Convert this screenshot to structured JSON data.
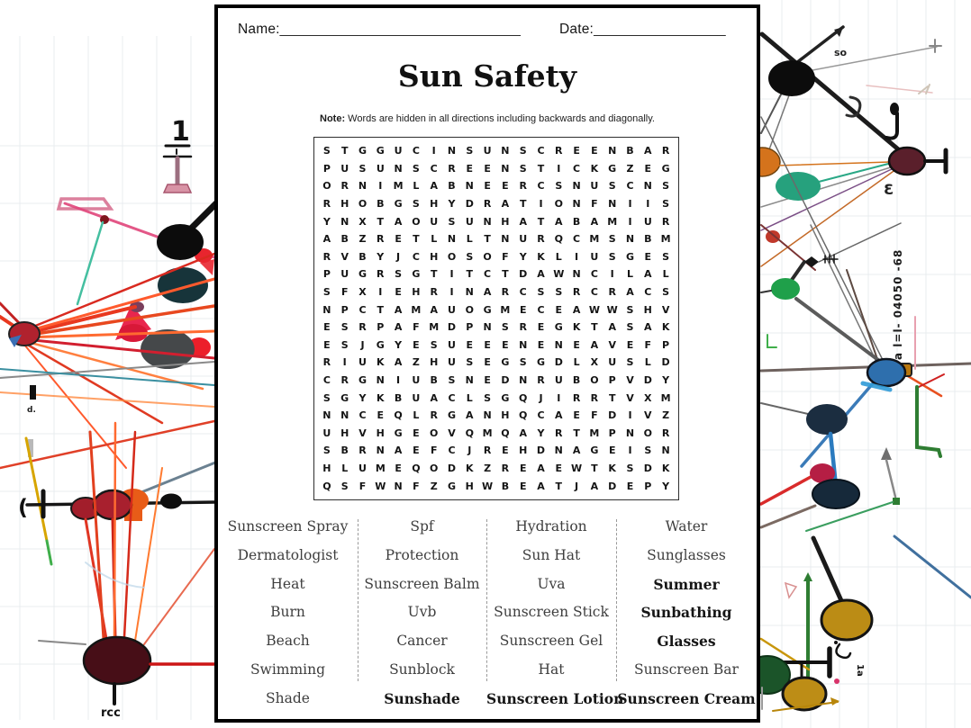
{
  "header": {
    "name_label": "Name:",
    "name_line": "_______________________________",
    "date_label": "Date:",
    "date_line": "_________________"
  },
  "title": "Sun Safety",
  "note": {
    "label": "Note:",
    "text": " Words are hidden in all directions including backwards and diagonally."
  },
  "grid": {
    "rows": 20,
    "cols": 20,
    "letters": [
      "STGGUCINSUNSCREENBAR",
      "PUSUNSCREENSTICKGZEG",
      "ORNIMLABNEERCSNUSCNS",
      "RHOBGSHYDRATIONFNIIS",
      "YNXTAOUSUNHATABAMIUR",
      "ABZRETLNLTNURQCMSNBM",
      "RVBYJCHOSOFYKLIUSGES",
      "PUGRSGTITCTDAWNCILAL",
      "SFXIEHRINARCSSRCRACS",
      "NPCTAMAUOGMECEAWWSHV",
      "ESRPAFMDPNSREGKTASAK",
      "ESJGYESUEEENENEAVEFP",
      "RIUKAZHUSEGSGDLXUSLD",
      "CRGNIUBSNEDNRUBOPVDY",
      "SGYKBUACLSGQJIRRTVXM",
      "NNCEQLRGANHQCAEFDIVZ",
      "UHVHGEOVQMQAYRTMPNOR",
      "SBRNAEFCJREHDNAGEISN",
      "HLUMEQODKZREAEWTKSDK",
      "QSFWNFZGHWBEATJADEPY"
    ]
  },
  "word_list": {
    "columns": [
      [
        "Sunscreen Spray",
        "Dermatologist",
        "Heat",
        "Burn",
        "Beach",
        "Swimming",
        "Shade"
      ],
      [
        "Spf",
        "Protection",
        "Sunscreen Balm",
        "Uvb",
        "Cancer",
        "Sunblock",
        "Sunshade"
      ],
      [
        "Hydration",
        "Sun Hat",
        "Uva",
        "Sunscreen Stick",
        "Sunscreen Gel",
        "Hat",
        "Sunscreen Lotion"
      ],
      [
        "Water",
        "Sunglasses",
        "Summer",
        "Sunbathing",
        "Glasses",
        "Sunscreen Bar",
        "Sunscreen Cream"
      ]
    ],
    "bold_words": [
      "Summer",
      "Sunbathing",
      "Glasses",
      "Sunshade",
      "Sunscreen Lotion",
      "Sunscreen Cream"
    ]
  },
  "colors": {
    "ink": "#111111",
    "word_text": "#3e3e3e",
    "panel_border": "#000000"
  },
  "art": {
    "glyphs": {
      "fraction_numerator": "1",
      "paren": "(",
      "squiggle_rcc": "rcc",
      "squiggle_so": "so",
      "backwards_three": "3",
      "vertical_marks": "a l=l- 04050 -68",
      "rotated_1a": "1a",
      "tiny_d": "d."
    }
  }
}
